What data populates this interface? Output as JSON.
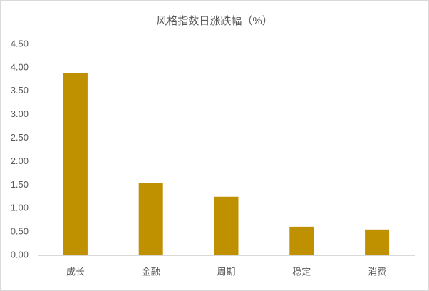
{
  "chart_data": {
    "type": "bar",
    "title": "风格指数日涨跌幅（%）",
    "categories": [
      "成长",
      "金融",
      "周期",
      "稳定",
      "消费"
    ],
    "values": [
      3.89,
      1.54,
      1.25,
      0.61,
      0.55
    ],
    "color": "#bf9000",
    "ylim": [
      0,
      4.5
    ],
    "yticks": [
      {
        "value": 0,
        "label": "0.00"
      },
      {
        "value": 0.5,
        "label": "0.50"
      },
      {
        "value": 1,
        "label": "1.00"
      },
      {
        "value": 1.5,
        "label": "1.50"
      },
      {
        "value": 2,
        "label": "2.00"
      },
      {
        "value": 2.5,
        "label": "2.50"
      },
      {
        "value": 3,
        "label": "3.00"
      },
      {
        "value": 3.5,
        "label": "3.50"
      },
      {
        "value": 4,
        "label": "4.00"
      },
      {
        "value": 4.5,
        "label": "4.50"
      }
    ],
    "grid": false
  }
}
